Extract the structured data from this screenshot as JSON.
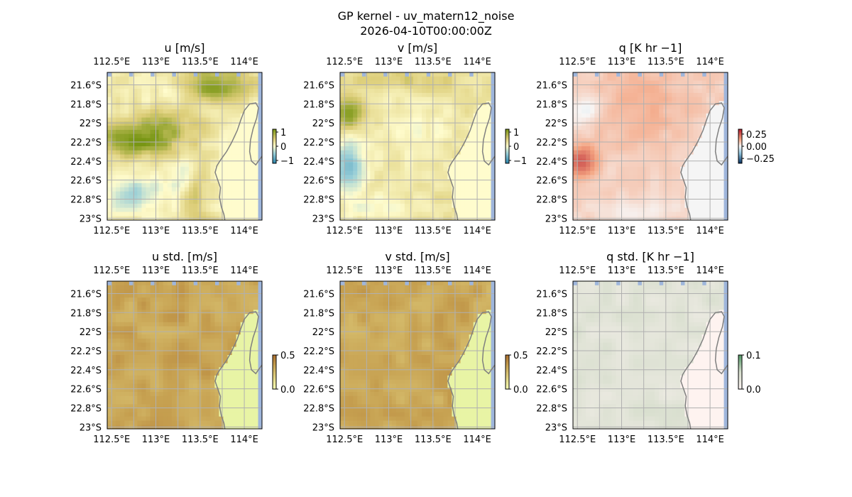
{
  "figure": {
    "title_line1": "GP kernel - uv_matern12_noise",
    "title_line2": "2026-04-10T00:00:00Z"
  },
  "axes": {
    "lon_ticks": [
      112.5,
      113.0,
      113.5,
      114.0
    ],
    "lon_labels": [
      "112.5°E",
      "113°E",
      "113.5°E",
      "114°E"
    ],
    "lat_ticks": [
      -21.6,
      -21.8,
      -22.0,
      -22.2,
      -22.4,
      -22.6,
      -22.8,
      -23.0
    ],
    "lat_labels": [
      "21.6°S",
      "21.8°S",
      "22°S",
      "22.2°S",
      "22.4°S",
      "22.6°S",
      "22.8°S",
      "23°S"
    ],
    "lon_range": [
      112.45,
      114.2
    ],
    "lat_range": [
      -21.47,
      -23.02
    ]
  },
  "colors": {
    "ocean_edge": "#9fb6dc",
    "coast": "#808080",
    "grid": "#b0b0b0"
  },
  "chart_data": [
    {
      "type": "heatmap",
      "title": "u [m/s]",
      "field": "u",
      "land": "uv",
      "cbar": {
        "ticks": [
          1,
          0,
          -1
        ],
        "labels": [
          "1",
          "0",
          "−1"
        ],
        "range": [
          -1.2,
          1.2
        ]
      }
    },
    {
      "type": "heatmap",
      "title": "v [m/s]",
      "field": "v",
      "land": "uv",
      "cbar": {
        "ticks": [
          1,
          0,
          -1
        ],
        "labels": [
          "1",
          "0",
          "−1"
        ],
        "range": [
          -1.2,
          1.2
        ]
      }
    },
    {
      "type": "heatmap",
      "title": "q [K hr −1]",
      "field": "q",
      "land": "q",
      "cbar": {
        "ticks": [
          0.25,
          0,
          -0.25
        ],
        "labels": [
          "0.25",
          "0.00",
          "−0.25"
        ],
        "range": [
          -0.35,
          0.35
        ]
      }
    },
    {
      "type": "heatmap",
      "title": "u std. [m/s]",
      "field": "ustd",
      "land": "std",
      "cbar": {
        "ticks": [
          0.5,
          0
        ],
        "labels": [
          "0.5",
          "0.0"
        ],
        "range": [
          0,
          0.5
        ]
      }
    },
    {
      "type": "heatmap",
      "title": "v std. [m/s]",
      "field": "vstd",
      "land": "std",
      "cbar": {
        "ticks": [
          0.5,
          0
        ],
        "labels": [
          "0.5",
          "0.0"
        ],
        "range": [
          0,
          0.5
        ]
      }
    },
    {
      "type": "heatmap",
      "title": "q std. [K hr −1]",
      "field": "qstd",
      "land": "qstd",
      "cbar": {
        "ticks": [
          0.1,
          0
        ],
        "labels": [
          "0.1",
          "0.0"
        ],
        "range": [
          0,
          0.1
        ]
      }
    }
  ]
}
